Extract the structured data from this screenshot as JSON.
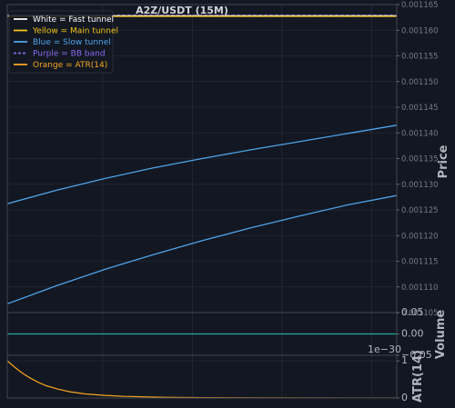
{
  "chart_data": {
    "type": "line",
    "title": "A2Z/USDT (15M)",
    "colors": {
      "background": "#131722",
      "grid": "#242a38",
      "fast": "#ffffff",
      "main": "#f5c518",
      "slow": "#4ea3e8",
      "bb": "#8c6cf0",
      "atr": "#f5a623",
      "volume": "#26a69a",
      "frame": "#434651"
    },
    "legend": [
      {
        "label": "White = Fast tunnel",
        "color": "#ffffff",
        "style": "solid"
      },
      {
        "label": "Yellow = Main tunnel",
        "color": "#f5c518",
        "style": "solid"
      },
      {
        "label": "Blue = Slow tunnel",
        "color": "#4ea3e8",
        "style": "solid"
      },
      {
        "label": "Purple = BB band",
        "color": "#8c6cf0",
        "style": "dashed"
      },
      {
        "label": "Orange = ATR(14)",
        "color": "#f5a623",
        "style": "solid"
      }
    ],
    "legend_position": "top-left",
    "grid": true,
    "price_panel": {
      "ylabel": "Price",
      "ylim": [
        0.001105,
        0.001165
      ],
      "yticks": [
        "0.001105",
        "0.001110",
        "0.001115",
        "0.001120",
        "0.001125",
        "0.001130",
        "0.001135",
        "0.001140",
        "0.001145",
        "0.001150",
        "0.001155",
        "0.001160",
        "0.001165"
      ],
      "series": [
        {
          "id": "bb-upper",
          "color": "#8c6cf0",
          "style": "dashed",
          "x": [
            0,
            1
          ],
          "y": [
            0.0011629,
            0.0011629
          ]
        },
        {
          "id": "fast-top",
          "color": "#ffffff",
          "style": "solid",
          "x": [
            0,
            1
          ],
          "y": [
            0.0011628,
            0.0011628
          ]
        },
        {
          "id": "main-top",
          "color": "#f5c518",
          "style": "solid",
          "x": [
            0,
            1
          ],
          "y": [
            0.0011627,
            0.0011627
          ]
        },
        {
          "id": "slow-upper",
          "color": "#4ea3e8",
          "style": "solid",
          "x": [
            0,
            0.125,
            0.25,
            0.375,
            0.5,
            0.625,
            0.75,
            0.875,
            1
          ],
          "y": [
            0.0011262,
            0.0011288,
            0.0011311,
            0.0011332,
            0.001135,
            0.0011367,
            0.0011383,
            0.0011399,
            0.0011415
          ]
        },
        {
          "id": "slow-lower",
          "color": "#4ea3e8",
          "style": "solid",
          "x": [
            0,
            0.125,
            0.25,
            0.375,
            0.5,
            0.625,
            0.75,
            0.875,
            1
          ],
          "y": [
            0.0011067,
            0.0011102,
            0.0011134,
            0.0011163,
            0.001119,
            0.0011215,
            0.0011238,
            0.001126,
            0.0011278
          ]
        }
      ]
    },
    "volume_panel": {
      "ylabel": "Volume",
      "ylim": [
        -0.05,
        0.05
      ],
      "yticks": [
        "0.05",
        "0.00",
        "−0.05"
      ],
      "offset_text": "1e−30",
      "series": [
        {
          "id": "volume",
          "color": "#26a69a",
          "x": [
            0,
            1
          ],
          "y": [
            0.0,
            0.0
          ]
        }
      ]
    },
    "atr_panel": {
      "ylabel": "ATR(14)",
      "ylim": [
        0,
        1.15
      ],
      "yticks": [
        "0",
        "1"
      ],
      "series": [
        {
          "id": "atr",
          "color": "#f5a623",
          "x": [
            0,
            0.02,
            0.04,
            0.06,
            0.08,
            0.1,
            0.13,
            0.16,
            0.2,
            0.25,
            0.3,
            0.4,
            0.5,
            0.7,
            1
          ],
          "y": [
            1.0,
            0.82,
            0.66,
            0.53,
            0.42,
            0.33,
            0.24,
            0.17,
            0.11,
            0.07,
            0.045,
            0.02,
            0.01,
            0.003,
            0.0
          ]
        }
      ]
    }
  }
}
